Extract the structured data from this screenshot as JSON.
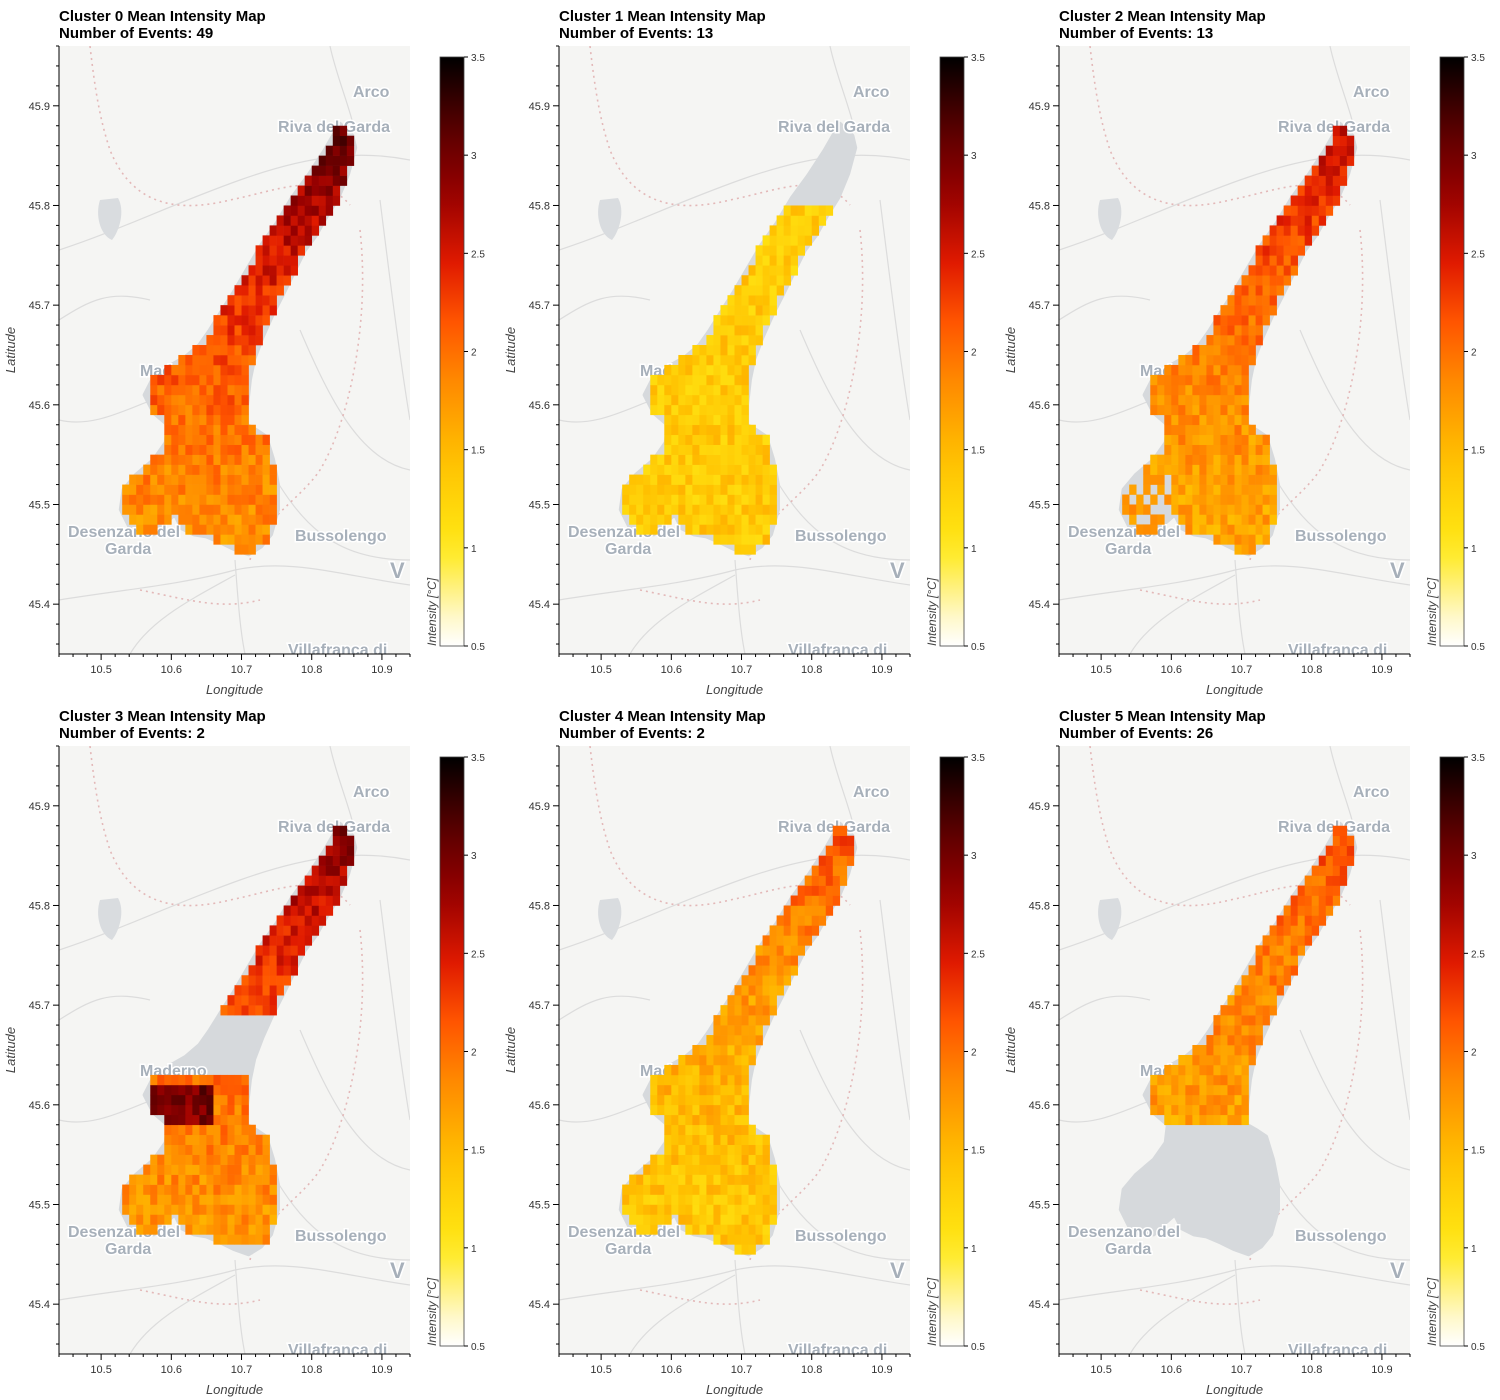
{
  "colorbar": {
    "label": "Intensity [°C]",
    "range": [
      0.5,
      3.5
    ],
    "ticks": [
      "0.5",
      "1",
      "1.5",
      "2",
      "2.5",
      "3",
      "3.5"
    ]
  },
  "axes": {
    "xlabel": "Longitude",
    "ylabel": "Latitude",
    "xticks": [
      "10.5",
      "10.6",
      "10.7",
      "10.8",
      "10.9"
    ],
    "yticks": [
      "45.4",
      "45.5",
      "45.6",
      "45.7",
      "45.8",
      "45.9"
    ]
  },
  "map_labels": [
    "Arco",
    "Riva del Garda",
    "Maderno",
    "Desenzano del",
    "Garda",
    "Bussolengo",
    "V",
    "Villafranca di"
  ],
  "chart_data": [
    {
      "type": "heatmap",
      "title": "Cluster 0 Mean Intensity Map",
      "subtitle": "Number of Events: 49",
      "xlabel": "Longitude",
      "ylabel": "Latitude",
      "xlim": [
        10.44,
        10.94
      ],
      "ylim": [
        45.35,
        45.96
      ],
      "colorbar_label": "Intensity [°C]",
      "clim": [
        0.5,
        3.5
      ],
      "colormap": "fire",
      "intensity_south": 1.8,
      "intensity_north": 3.1,
      "coverage": "whole lake"
    },
    {
      "type": "heatmap",
      "title": "Cluster 1 Mean Intensity Map",
      "subtitle": "Number of Events: 13",
      "xlabel": "Longitude",
      "ylabel": "Latitude",
      "xlim": [
        10.44,
        10.94
      ],
      "ylim": [
        45.35,
        45.96
      ],
      "colorbar_label": "Intensity [°C]",
      "clim": [
        0.5,
        3.5
      ],
      "colormap": "fire",
      "intensity_south": 1.35,
      "intensity_north": 1.3,
      "coverage": "lake south of 45.8"
    },
    {
      "type": "heatmap",
      "title": "Cluster 2 Mean Intensity Map",
      "subtitle": "Number of Events: 13",
      "xlabel": "Longitude",
      "ylabel": "Latitude",
      "xlim": [
        10.44,
        10.94
      ],
      "ylim": [
        45.35,
        45.96
      ],
      "colorbar_label": "Intensity [°C]",
      "clim": [
        0.5,
        3.5
      ],
      "colormap": "fire",
      "intensity_south": 1.65,
      "intensity_north": 2.6,
      "coverage": "whole lake, sparse in south-west"
    },
    {
      "type": "heatmap",
      "title": "Cluster 3 Mean Intensity Map",
      "subtitle": "Number of Events: 2",
      "xlabel": "Longitude",
      "ylabel": "Latitude",
      "xlim": [
        10.44,
        10.94
      ],
      "ylim": [
        45.35,
        45.96
      ],
      "colorbar_label": "Intensity [°C]",
      "clim": [
        0.5,
        3.5
      ],
      "colormap": "fire",
      "intensity_south": 1.75,
      "intensity_north": 2.9,
      "coverage": "north arm above 45.68 and southern basin"
    },
    {
      "type": "heatmap",
      "title": "Cluster 4 Mean Intensity Map",
      "subtitle": "Number of Events: 2",
      "xlabel": "Longitude",
      "ylabel": "Latitude",
      "xlim": [
        10.44,
        10.94
      ],
      "ylim": [
        45.35,
        45.96
      ],
      "colorbar_label": "Intensity [°C]",
      "clim": [
        0.5,
        3.5
      ],
      "colormap": "fire",
      "intensity_south": 1.35,
      "intensity_north": 2.2,
      "coverage": "whole lake"
    },
    {
      "type": "heatmap",
      "title": "Cluster 5 Mean Intensity Map",
      "subtitle": "Number of Events: 26",
      "xlabel": "Longitude",
      "ylabel": "Latitude",
      "xlim": [
        10.44,
        10.94
      ],
      "ylim": [
        45.35,
        45.96
      ],
      "colorbar_label": "Intensity [°C]",
      "clim": [
        0.5,
        3.5
      ],
      "colormap": "fire",
      "intensity_south": 1.6,
      "intensity_north": 2.2,
      "coverage": "lake north of 45.58"
    }
  ]
}
